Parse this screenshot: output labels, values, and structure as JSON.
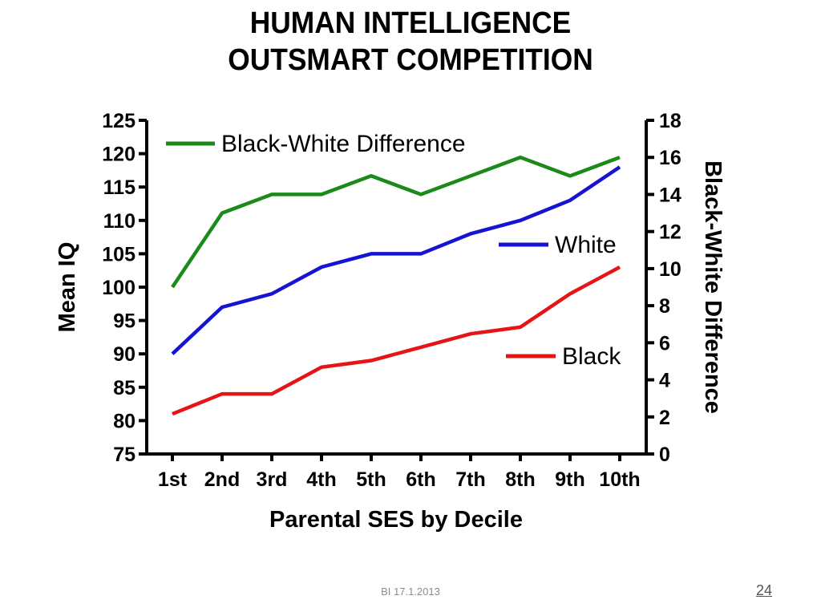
{
  "slide": {
    "title_line1": "HUMAN INTELLIGENCE",
    "title_line2": "OUTSMART COMPETITION",
    "footer": "BI 17.1.2013",
    "page_number": "24"
  },
  "chart_data": {
    "type": "line",
    "categories": [
      "1st",
      "2nd",
      "3rd",
      "4th",
      "5th",
      "6th",
      "7th",
      "8th",
      "9th",
      "10th"
    ],
    "xlabel": "Parental SES by Decile",
    "ylabel": "Mean IQ",
    "y2label": "Black-White Difference",
    "ylim": [
      75,
      125
    ],
    "y2lim": [
      0,
      18
    ],
    "yticks": [
      75,
      80,
      85,
      90,
      95,
      100,
      105,
      110,
      115,
      120,
      125
    ],
    "y2ticks": [
      0,
      2,
      4,
      6,
      8,
      10,
      12,
      14,
      16,
      18
    ],
    "grid": false,
    "series": [
      {
        "name": "Black-White Difference",
        "axis": "right",
        "color": "#1a8a1a",
        "values": [
          9,
          13,
          14,
          14,
          15,
          14,
          15,
          16,
          15,
          16
        ]
      },
      {
        "name": "White",
        "axis": "left",
        "color": "#1414d2",
        "values": [
          90,
          97,
          99,
          103,
          105,
          105,
          108,
          110,
          113,
          118
        ]
      },
      {
        "name": "Black",
        "axis": "left",
        "color": "#e61414",
        "values": [
          81,
          84,
          84,
          88,
          89,
          91,
          93,
          94,
          99,
          103
        ]
      }
    ]
  }
}
